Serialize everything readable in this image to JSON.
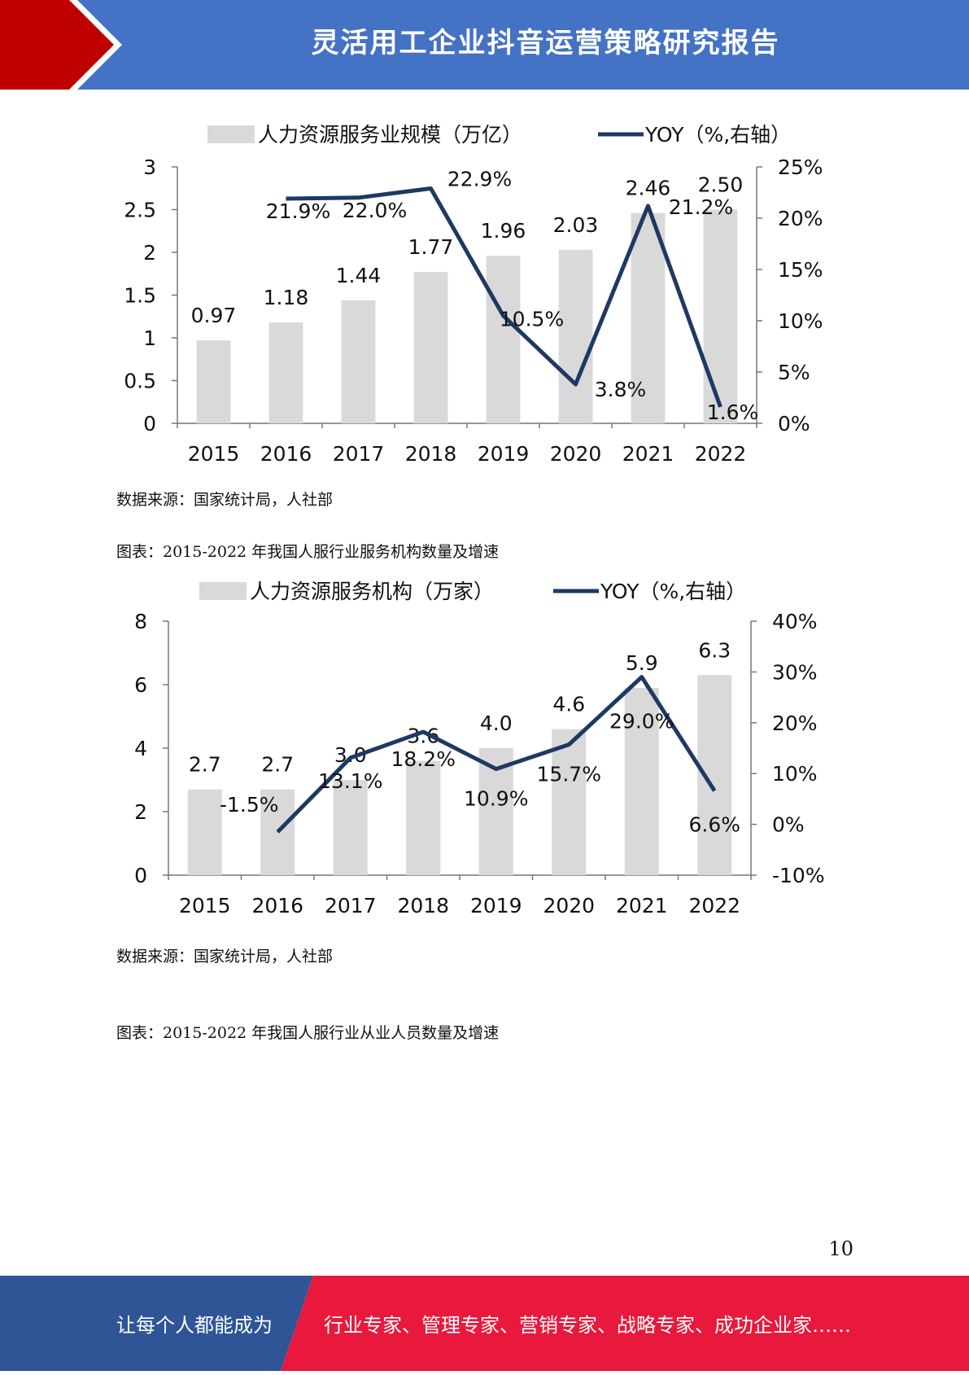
{
  "header": {
    "title": "灵活用工企业抖音运营策略研究报告"
  },
  "chart1": {
    "source": "数据来源：国家统计局，人社部"
  },
  "chart2_caption": "图表：2015-2022 年我国人服行业服务机构数量及增速",
  "chart2_source": "数据来源：国家统计局，人社部",
  "chart3_caption": "图表：2015-2022 年我国人服行业从业人员数量及增速",
  "page_number": "10",
  "footer": {
    "left": "让每个人都能成为",
    "right": "行业专家、管理专家、营销专家、战略专家、成功企业家……"
  },
  "colors": {
    "header": "#4472c4",
    "accent_red": "#c00000",
    "footer_blue": "#2f5597",
    "footer_red": "#e8193c",
    "bar": "#d9d9d9",
    "line": "#1f3864"
  },
  "chart_data": [
    {
      "type": "bar",
      "categories": [
        "2015",
        "2016",
        "2017",
        "2018",
        "2019",
        "2020",
        "2021",
        "2022"
      ],
      "series": [
        {
          "name": "人力资源服务业规模（万亿）",
          "type": "bar",
          "values": [
            0.97,
            1.18,
            1.44,
            1.77,
            1.96,
            2.03,
            2.46,
            2.5
          ],
          "labels": [
            "0.97",
            "1.18",
            "1.44",
            "1.77",
            "1.96",
            "2.03",
            "2.46",
            "2.50"
          ]
        },
        {
          "name": "YOY（%,右轴）",
          "type": "line",
          "axis": "right",
          "values": [
            null,
            21.9,
            22.0,
            22.9,
            10.5,
            3.8,
            21.2,
            1.6
          ],
          "labels": [
            "",
            "21.9%",
            "22.0%",
            "22.9%",
            "10.5%",
            "3.8%",
            "21.2%",
            "1.6%"
          ]
        }
      ],
      "ylim": [
        0,
        3
      ],
      "yticks": [
        "0",
        "0.5",
        "1",
        "1.5",
        "2",
        "2.5",
        "3"
      ],
      "y2lim": [
        0,
        25
      ],
      "y2ticks": [
        "0%",
        "5%",
        "10%",
        "15%",
        "20%",
        "25%"
      ],
      "legend": "top"
    },
    {
      "type": "bar",
      "categories": [
        "2015",
        "2016",
        "2017",
        "2018",
        "2019",
        "2020",
        "2021",
        "2022"
      ],
      "series": [
        {
          "name": "人力资源服务机构（万家）",
          "type": "bar",
          "values": [
            2.7,
            2.7,
            3.0,
            3.6,
            4.0,
            4.6,
            5.9,
            6.3
          ],
          "labels": [
            "2.7",
            "2.7",
            "3.0",
            "3.6",
            "4.0",
            "4.6",
            "5.9",
            "6.3"
          ]
        },
        {
          "name": "YOY（%,右轴）",
          "type": "line",
          "axis": "right",
          "values": [
            null,
            -1.5,
            13.1,
            18.2,
            10.9,
            15.7,
            29.0,
            6.6
          ],
          "labels": [
            "",
            "-1.5%",
            "13.1%",
            "18.2%",
            "10.9%",
            "15.7%",
            "29.0%",
            "6.6%"
          ]
        }
      ],
      "ylim": [
        0,
        8
      ],
      "yticks": [
        "0",
        "2",
        "4",
        "6",
        "8"
      ],
      "y2lim": [
        -10,
        40
      ],
      "y2ticks": [
        "-10%",
        "0%",
        "10%",
        "20%",
        "30%",
        "40%"
      ],
      "legend": "top"
    }
  ]
}
